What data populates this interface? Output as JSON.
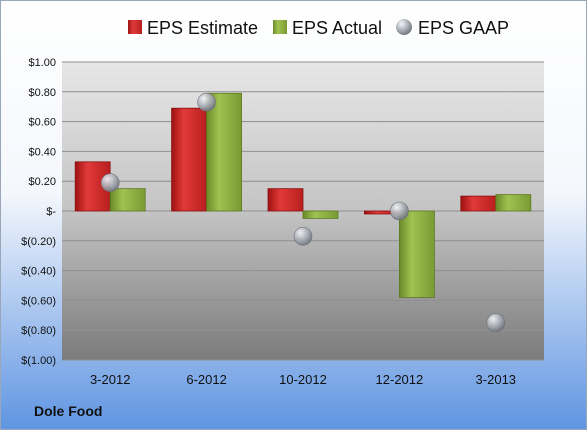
{
  "company": "Dole Food",
  "colors": {
    "estimate": "#d42a2a",
    "actual": "#86a83c",
    "gaap": "#b8bcc4"
  },
  "chart_data": {
    "type": "bar",
    "categories": [
      "3-2012",
      "6-2012",
      "10-2012",
      "12-2012",
      "3-2013"
    ],
    "series": [
      {
        "name": "EPS Estimate",
        "kind": "bar",
        "values": [
          0.33,
          0.69,
          0.15,
          -0.02,
          0.1
        ]
      },
      {
        "name": "EPS Actual",
        "kind": "bar",
        "values": [
          0.15,
          0.79,
          -0.05,
          -0.58,
          0.11
        ]
      },
      {
        "name": "EPS GAAP",
        "kind": "scatter",
        "values": [
          0.19,
          0.73,
          -0.17,
          0.0,
          -0.75
        ]
      }
    ],
    "ylim": [
      -1.0,
      1.0
    ],
    "yticks": [
      1.0,
      0.8,
      0.6,
      0.4,
      0.2,
      0.0,
      -0.2,
      -0.4,
      -0.6,
      -0.8,
      -1.0
    ],
    "ytick_labels": [
      "$1.00",
      "$0.80",
      "$0.60",
      "$0.40",
      "$0.20",
      "$-",
      "$(0.20)",
      "$(0.40)",
      "$(0.60)",
      "$(0.80)",
      "$(1.00)"
    ],
    "grid": true,
    "legend_position": "top"
  }
}
